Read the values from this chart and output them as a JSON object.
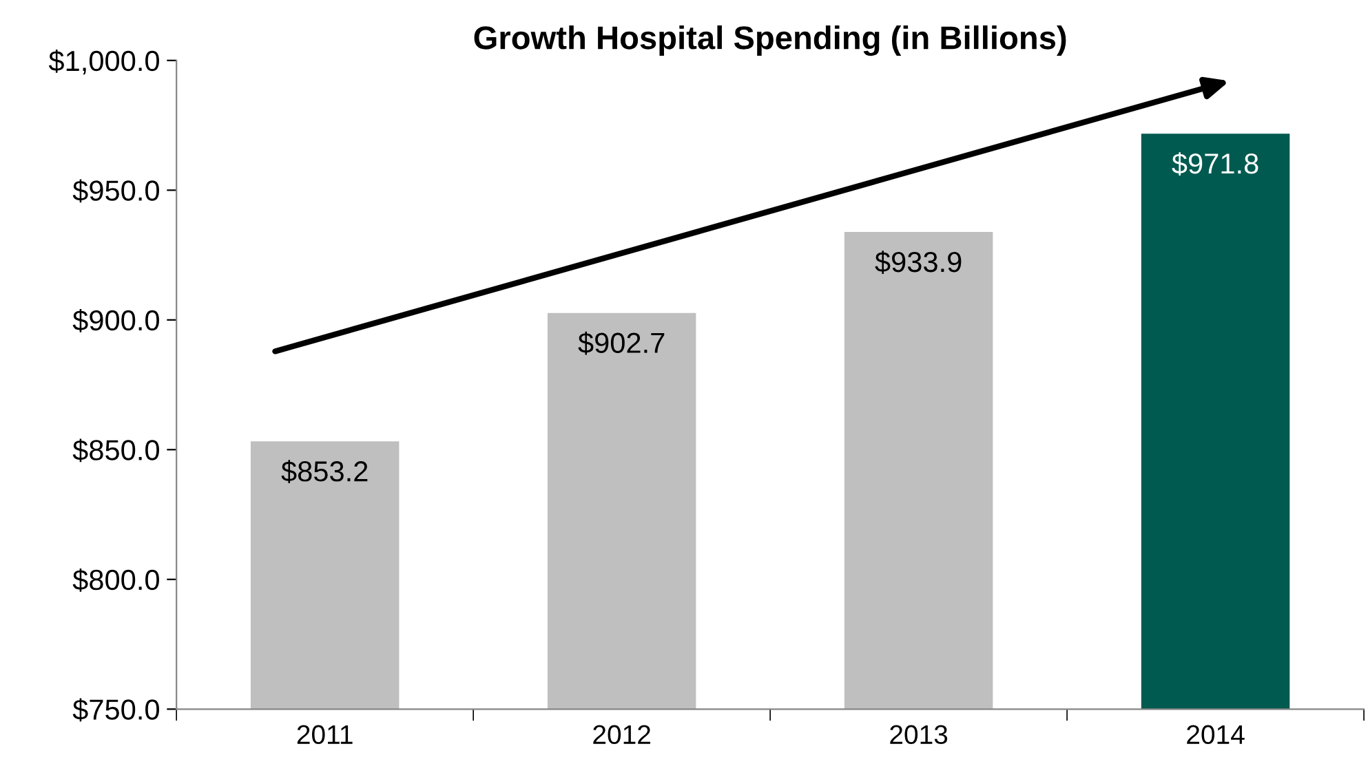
{
  "chart_data": {
    "type": "bar",
    "title": "Growth Hospital Spending (in Billions)",
    "categories": [
      "2011",
      "2012",
      "2013",
      "2014"
    ],
    "values": [
      853.2,
      902.7,
      933.9,
      971.8
    ],
    "colors": [
      "#bfbfbf",
      "#bfbfbf",
      "#bfbfbf",
      "#005a50"
    ],
    "value_labels": [
      "$853.2",
      "$902.7",
      "$933.9",
      "$971.8"
    ],
    "ylim": [
      750,
      1000
    ],
    "yticks": [
      {
        "value": 750,
        "label": "$750.0"
      },
      {
        "value": 800,
        "label": "$800.0"
      },
      {
        "value": 850,
        "label": "$850.0"
      },
      {
        "value": 900,
        "label": "$900.0"
      },
      {
        "value": 950,
        "label": "$950.0"
      },
      {
        "value": 1000,
        "label": "$1,000.0"
      }
    ],
    "grid": false,
    "legend": false
  }
}
